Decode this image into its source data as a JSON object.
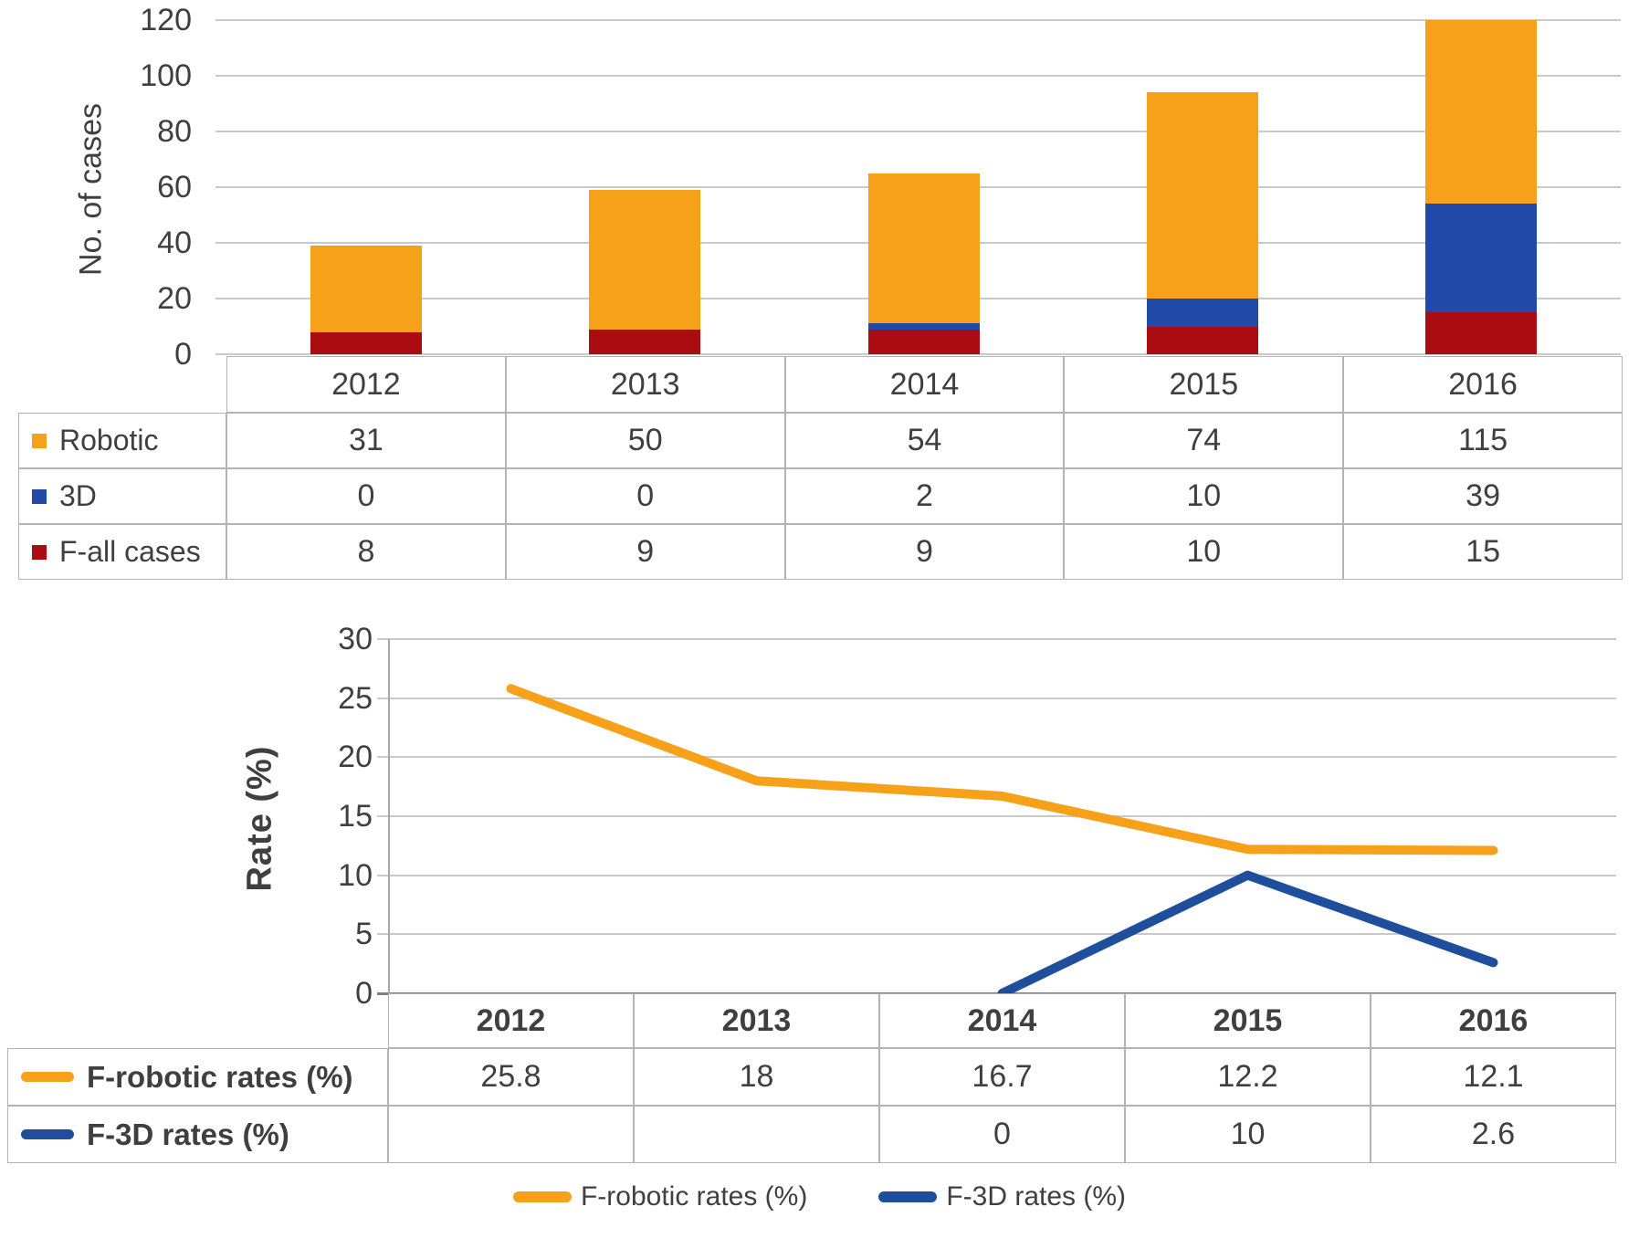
{
  "colors": {
    "robotic_orange": "#F7A11A",
    "bar_blue": "#2149A8",
    "dark_red": "#A90D12",
    "line_blue": "#1F4E9C",
    "grid_gray": "#C9C9C9",
    "text_gray": "#3F3F3F",
    "border_gray": "#B3B3B3"
  },
  "chart_data": [
    {
      "type": "bar",
      "stacked": true,
      "categories": [
        "2012",
        "2013",
        "2014",
        "2015",
        "2016"
      ],
      "series": [
        {
          "name": "Robotic",
          "color": "#F7A11A",
          "values": [
            31,
            50,
            54,
            74,
            115
          ]
        },
        {
          "name": "3D",
          "color": "#2149A8",
          "values": [
            0,
            0,
            2,
            10,
            39
          ]
        },
        {
          "name": "F-all cases",
          "color": "#A90D12",
          "values": [
            8,
            9,
            9,
            10,
            15
          ]
        }
      ],
      "stack_bottom_to_top": [
        "F-all cases",
        "3D",
        "Robotic"
      ],
      "title": "",
      "xlabel": "",
      "ylabel": "No. of cases",
      "ylim": [
        0,
        120
      ],
      "yticks": [
        0,
        20,
        40,
        60,
        80,
        100,
        120
      ],
      "grid": true,
      "note": "2016 stacked total (169) is clipped at the axis maximum of 120"
    },
    {
      "type": "line",
      "categories": [
        "2012",
        "2013",
        "2014",
        "2015",
        "2016"
      ],
      "series": [
        {
          "name": "F-robotic rates (%)",
          "color": "#F7A11A",
          "values": [
            25.8,
            18,
            16.7,
            12.2,
            12.1
          ]
        },
        {
          "name": "F-3D rates (%)",
          "color": "#1F4E9C",
          "values": [
            null,
            null,
            0,
            10,
            2.6
          ]
        }
      ],
      "title": "",
      "xlabel": "",
      "ylabel": "Rate (%)",
      "ylim": [
        0,
        30
      ],
      "yticks": [
        0,
        5,
        10,
        15,
        20,
        25,
        30
      ],
      "grid": true,
      "legend_position": "bottom"
    }
  ],
  "top_table": {
    "years": [
      "2012",
      "2013",
      "2014",
      "2015",
      "2016"
    ],
    "rows": [
      {
        "label": "Robotic",
        "swatch": "#F7A11A",
        "values": [
          "31",
          "50",
          "54",
          "74",
          "115"
        ]
      },
      {
        "label": "3D",
        "swatch": "#2149A8",
        "values": [
          "0",
          "0",
          "2",
          "10",
          "39"
        ]
      },
      {
        "label": "F-all cases",
        "swatch": "#A90D12",
        "values": [
          "8",
          "9",
          "9",
          "10",
          "15"
        ]
      }
    ]
  },
  "bottom_table": {
    "years": [
      "2012",
      "2013",
      "2014",
      "2015",
      "2016"
    ],
    "rows": [
      {
        "label": "F-robotic rates (%)",
        "swatch": "#F7A11A",
        "values": [
          "25.8",
          "18",
          "16.7",
          "12.2",
          "12.1"
        ]
      },
      {
        "label": "F-3D rates (%)",
        "swatch": "#1F4E9C",
        "values": [
          "",
          "",
          "0",
          "10",
          "2.6"
        ]
      }
    ]
  },
  "legend": {
    "items": [
      {
        "label": "F-robotic rates (%)",
        "color": "#F7A11A"
      },
      {
        "label": "F-3D rates (%)",
        "color": "#1F4E9C"
      }
    ]
  }
}
